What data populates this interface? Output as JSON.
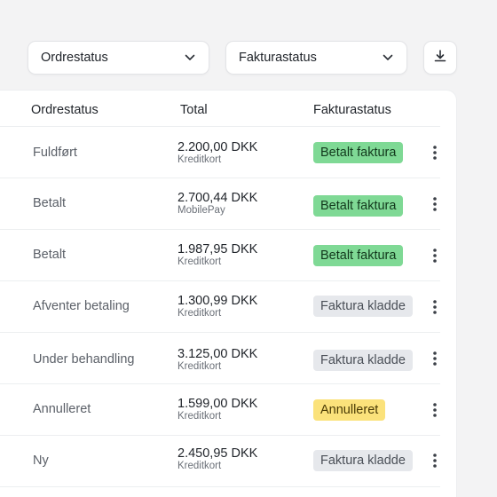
{
  "filters": {
    "order_status": {
      "label": "Ordrestatus",
      "icon": "chevron-down-icon"
    },
    "invoice_status": {
      "label": "Fakturastatus",
      "icon": "chevron-down-icon"
    },
    "download": {
      "icon": "download-icon"
    }
  },
  "table": {
    "headers": [
      "Ordrestatus",
      "Total",
      "Fakturastatus"
    ],
    "rows": [
      {
        "status": "Fuldført",
        "amount": "2.200,00 DKK",
        "method": "Kreditkort",
        "invoice": "Betalt faktura",
        "invoice_type": "paid"
      },
      {
        "status": "Betalt",
        "amount": "2.700,44 DKK",
        "method": "MobilePay",
        "invoice": "Betalt faktura",
        "invoice_type": "paid"
      },
      {
        "status": "Betalt",
        "amount": "1.987,95 DKK",
        "method": "Kreditkort",
        "invoice": "Betalt faktura",
        "invoice_type": "paid"
      },
      {
        "status": "Afventer betaling",
        "amount": "1.300,99 DKK",
        "method": "Kreditkort",
        "invoice": "Faktura kladde",
        "invoice_type": "draft"
      },
      {
        "status": "Under behandling",
        "amount": "3.125,00 DKK",
        "method": "Kreditkort",
        "invoice": "Faktura kladde",
        "invoice_type": "draft"
      },
      {
        "status": "Annulleret",
        "amount": "1.599,00 DKK",
        "method": "Kreditkort",
        "invoice": "Annulleret",
        "invoice_type": "cancelled"
      },
      {
        "status": "Ny",
        "amount": "2.450,95 DKK",
        "method": "Kreditkort",
        "invoice": "Faktura kladde",
        "invoice_type": "draft"
      }
    ]
  },
  "colors": {
    "paid": "#7fd995",
    "draft": "#e6e8ec",
    "cancelled": "#fbe27b"
  }
}
